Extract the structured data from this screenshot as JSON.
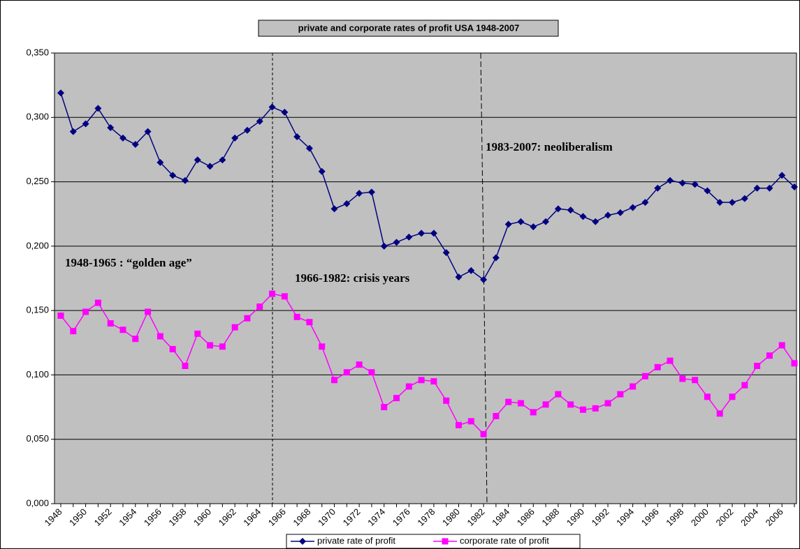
{
  "chart_data": {
    "type": "line",
    "title": "private and corporate rates of profit USA 1948-2007",
    "categories": [
      "1948",
      null,
      "1950",
      null,
      "1952",
      null,
      "1954",
      null,
      "1956",
      null,
      "1958",
      null,
      "1960",
      null,
      "1962",
      null,
      "1964",
      null,
      "1966",
      null,
      "1968",
      null,
      "1970",
      null,
      "1972",
      null,
      "1974",
      null,
      "1976",
      null,
      "1978",
      null,
      "1980",
      null,
      "1982",
      null,
      "1984",
      null,
      "1986",
      null,
      "1988",
      null,
      "1990",
      null,
      "1992",
      null,
      "1994",
      null,
      "1996",
      null,
      "1998",
      null,
      "2000",
      null,
      "2002",
      null,
      "2004",
      null,
      "2006",
      null
    ],
    "series": [
      {
        "name": "private rate of profit",
        "color": "#000080",
        "values": [
          0.319,
          0.289,
          0.295,
          0.307,
          0.292,
          0.284,
          0.279,
          0.289,
          0.265,
          0.255,
          0.251,
          0.267,
          0.262,
          0.267,
          0.284,
          0.29,
          0.297,
          0.308,
          0.304,
          0.285,
          0.276,
          0.258,
          0.229,
          0.233,
          0.241,
          0.242,
          0.2,
          0.203,
          0.207,
          0.21,
          0.21,
          0.195,
          0.176,
          0.181,
          0.174,
          0.191,
          0.217,
          0.219,
          0.215,
          0.219,
          0.229,
          0.228,
          0.223,
          0.219,
          0.224,
          0.226,
          0.23,
          0.234,
          0.245,
          0.251,
          0.249,
          0.248,
          0.243,
          0.234,
          0.234,
          0.237,
          0.245,
          0.245,
          0.255,
          0.246
        ]
      },
      {
        "name": "corporate rate of profit",
        "color": "#ff00ff",
        "values": [
          0.146,
          0.134,
          0.149,
          0.156,
          0.14,
          0.135,
          0.128,
          0.149,
          0.13,
          0.12,
          0.107,
          0.132,
          0.123,
          0.122,
          0.137,
          0.144,
          0.153,
          0.163,
          0.161,
          0.145,
          0.141,
          0.122,
          0.096,
          0.102,
          0.108,
          0.102,
          0.075,
          0.082,
          0.091,
          0.096,
          0.095,
          0.08,
          0.061,
          0.064,
          0.054,
          0.068,
          0.079,
          0.078,
          0.071,
          0.077,
          0.085,
          0.077,
          0.073,
          0.074,
          0.078,
          0.085,
          0.091,
          0.099,
          0.106,
          0.111,
          0.097,
          0.096,
          0.083,
          0.07,
          0.083,
          0.092,
          0.107,
          0.115,
          0.123,
          0.109
        ]
      }
    ],
    "ylim": [
      0,
      0.35
    ],
    "yticks": [
      {
        "value": 0,
        "label": "0,000"
      },
      {
        "value": 0.05,
        "label": "0,050"
      },
      {
        "value": 0.1,
        "label": "0,100"
      },
      {
        "value": 0.15,
        "label": "0,150"
      },
      {
        "value": 0.2,
        "label": "0,200"
      },
      {
        "value": 0.25,
        "label": "0,250"
      },
      {
        "value": 0.3,
        "label": "0,300"
      },
      {
        "value": 0.35,
        "label": "0,350"
      }
    ],
    "grid": true,
    "legend": "bottom",
    "annotations": [
      "1948-1965 : “golden age”",
      "1966-1982: crisis years",
      "1983-2007: neoliberalism"
    ]
  }
}
